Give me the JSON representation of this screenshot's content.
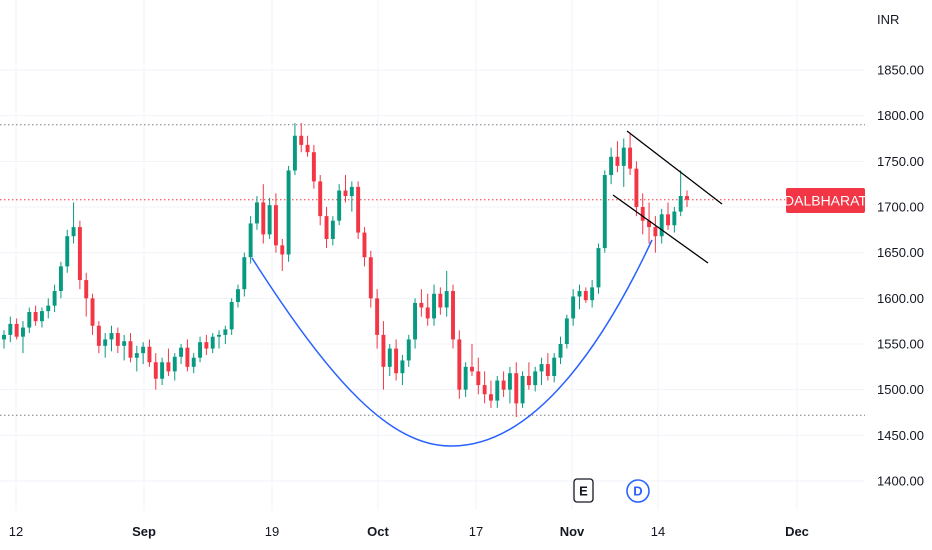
{
  "chart_data": {
    "type": "candlestick",
    "currency": "INR",
    "symbol_label": "DALBHARAT",
    "colors": {
      "up": "#089981",
      "down": "#f23645",
      "label_bg": "#f23645",
      "curve": "#2962ff",
      "channel": "#000000",
      "grid": "#f0f3fa"
    },
    "y_ticks": [
      "1850.00",
      "1800.00",
      "1750.00",
      "1700.00",
      "1650.00",
      "1600.00",
      "1550.00",
      "1500.00",
      "1450.00",
      "1400.00"
    ],
    "y_tick_values": [
      1850,
      1800,
      1750,
      1700,
      1650,
      1600,
      1550,
      1500,
      1450,
      1400
    ],
    "ylim": [
      1385,
      1880
    ],
    "x_ticks": [
      {
        "label": "12",
        "bold": false
      },
      {
        "label": "Sep",
        "bold": true
      },
      {
        "label": "19",
        "bold": false
      },
      {
        "label": "Oct",
        "bold": true
      },
      {
        "label": "17",
        "bold": false
      },
      {
        "label": "Nov",
        "bold": true
      },
      {
        "label": "14",
        "bold": false
      },
      {
        "label": "Dec",
        "bold": true
      }
    ],
    "reference_levels": [
      {
        "value": 1790,
        "style": "gray-dotted"
      },
      {
        "value": 1708,
        "style": "red-dotted"
      },
      {
        "value": 1472,
        "style": "gray-dotted"
      }
    ],
    "current_price": 1708,
    "events": [
      {
        "label": "E",
        "type": "earnings"
      },
      {
        "label": "D",
        "type": "dividend"
      }
    ],
    "candles": [
      [
        1555,
        1565,
        1545,
        1560
      ],
      [
        1560,
        1580,
        1552,
        1572
      ],
      [
        1572,
        1578,
        1555,
        1558
      ],
      [
        1558,
        1575,
        1540,
        1568
      ],
      [
        1568,
        1590,
        1562,
        1585
      ],
      [
        1585,
        1592,
        1570,
        1575
      ],
      [
        1575,
        1590,
        1568,
        1586
      ],
      [
        1586,
        1600,
        1578,
        1592
      ],
      [
        1592,
        1615,
        1585,
        1608
      ],
      [
        1608,
        1640,
        1600,
        1635
      ],
      [
        1635,
        1675,
        1628,
        1668
      ],
      [
        1668,
        1705,
        1660,
        1678
      ],
      [
        1678,
        1685,
        1610,
        1620
      ],
      [
        1620,
        1628,
        1580,
        1600
      ],
      [
        1600,
        1605,
        1560,
        1570
      ],
      [
        1570,
        1575,
        1540,
        1548
      ],
      [
        1548,
        1562,
        1535,
        1555
      ],
      [
        1555,
        1570,
        1542,
        1562
      ],
      [
        1562,
        1568,
        1540,
        1548
      ],
      [
        1548,
        1560,
        1532,
        1553
      ],
      [
        1553,
        1562,
        1530,
        1535
      ],
      [
        1535,
        1548,
        1520,
        1540
      ],
      [
        1540,
        1552,
        1528,
        1547
      ],
      [
        1547,
        1555,
        1525,
        1530
      ],
      [
        1530,
        1540,
        1500,
        1512
      ],
      [
        1512,
        1535,
        1505,
        1530
      ],
      [
        1530,
        1545,
        1515,
        1520
      ],
      [
        1520,
        1540,
        1510,
        1536
      ],
      [
        1536,
        1550,
        1528,
        1546
      ],
      [
        1546,
        1555,
        1520,
        1525
      ],
      [
        1525,
        1540,
        1518,
        1535
      ],
      [
        1535,
        1558,
        1530,
        1552
      ],
      [
        1552,
        1560,
        1538,
        1545
      ],
      [
        1545,
        1562,
        1540,
        1558
      ],
      [
        1558,
        1565,
        1545,
        1560
      ],
      [
        1560,
        1570,
        1550,
        1566
      ],
      [
        1566,
        1600,
        1560,
        1596
      ],
      [
        1596,
        1615,
        1590,
        1610
      ],
      [
        1610,
        1650,
        1602,
        1645
      ],
      [
        1645,
        1690,
        1638,
        1682
      ],
      [
        1682,
        1712,
        1675,
        1705
      ],
      [
        1705,
        1725,
        1660,
        1670
      ],
      [
        1670,
        1710,
        1665,
        1702
      ],
      [
        1702,
        1715,
        1650,
        1658
      ],
      [
        1658,
        1665,
        1630,
        1648
      ],
      [
        1648,
        1745,
        1640,
        1740
      ],
      [
        1740,
        1792,
        1735,
        1778
      ],
      [
        1778,
        1792,
        1760,
        1768
      ],
      [
        1768,
        1778,
        1755,
        1760
      ],
      [
        1760,
        1768,
        1720,
        1728
      ],
      [
        1728,
        1735,
        1680,
        1690
      ],
      [
        1690,
        1700,
        1655,
        1665
      ],
      [
        1665,
        1690,
        1658,
        1685
      ],
      [
        1685,
        1725,
        1680,
        1718
      ],
      [
        1718,
        1735,
        1705,
        1712
      ],
      [
        1712,
        1728,
        1695,
        1722
      ],
      [
        1722,
        1728,
        1665,
        1672
      ],
      [
        1672,
        1678,
        1635,
        1645
      ],
      [
        1645,
        1652,
        1590,
        1600
      ],
      [
        1600,
        1610,
        1545,
        1560
      ],
      [
        1560,
        1575,
        1500,
        1525
      ],
      [
        1525,
        1550,
        1515,
        1545
      ],
      [
        1545,
        1555,
        1510,
        1518
      ],
      [
        1518,
        1538,
        1505,
        1532
      ],
      [
        1532,
        1560,
        1525,
        1555
      ],
      [
        1555,
        1600,
        1545,
        1595
      ],
      [
        1595,
        1610,
        1580,
        1590
      ],
      [
        1590,
        1605,
        1570,
        1578
      ],
      [
        1578,
        1615,
        1570,
        1605
      ],
      [
        1605,
        1612,
        1582,
        1590
      ],
      [
        1590,
        1630,
        1580,
        1608
      ],
      [
        1608,
        1615,
        1545,
        1555
      ],
      [
        1555,
        1565,
        1490,
        1500
      ],
      [
        1500,
        1530,
        1492,
        1525
      ],
      [
        1525,
        1550,
        1515,
        1520
      ],
      [
        1520,
        1535,
        1495,
        1505
      ],
      [
        1505,
        1520,
        1485,
        1495
      ],
      [
        1495,
        1510,
        1480,
        1488
      ],
      [
        1488,
        1515,
        1480,
        1510
      ],
      [
        1510,
        1520,
        1492,
        1500
      ],
      [
        1500,
        1525,
        1485,
        1518
      ],
      [
        1518,
        1530,
        1470,
        1485
      ],
      [
        1485,
        1520,
        1480,
        1515
      ],
      [
        1515,
        1530,
        1500,
        1505
      ],
      [
        1505,
        1525,
        1498,
        1520
      ],
      [
        1520,
        1535,
        1505,
        1528
      ],
      [
        1528,
        1540,
        1510,
        1515
      ],
      [
        1515,
        1540,
        1508,
        1535
      ],
      [
        1535,
        1558,
        1528,
        1550
      ],
      [
        1550,
        1582,
        1545,
        1578
      ],
      [
        1578,
        1610,
        1570,
        1602
      ],
      [
        1602,
        1615,
        1588,
        1608
      ],
      [
        1608,
        1612,
        1595,
        1598
      ],
      [
        1598,
        1620,
        1590,
        1612
      ],
      [
        1612,
        1660,
        1605,
        1655
      ],
      [
        1655,
        1740,
        1650,
        1735
      ],
      [
        1735,
        1765,
        1725,
        1755
      ],
      [
        1755,
        1772,
        1738,
        1745
      ],
      [
        1745,
        1775,
        1722,
        1765
      ],
      [
        1765,
        1780,
        1735,
        1742
      ],
      [
        1742,
        1750,
        1690,
        1700
      ],
      [
        1700,
        1715,
        1670,
        1685
      ],
      [
        1685,
        1705,
        1660,
        1678
      ],
      [
        1678,
        1690,
        1650,
        1668
      ],
      [
        1668,
        1698,
        1660,
        1692
      ],
      [
        1692,
        1705,
        1675,
        1680
      ],
      [
        1680,
        1700,
        1672,
        1695
      ],
      [
        1695,
        1740,
        1690,
        1712
      ],
      [
        1712,
        1718,
        1700,
        1708
      ]
    ]
  }
}
